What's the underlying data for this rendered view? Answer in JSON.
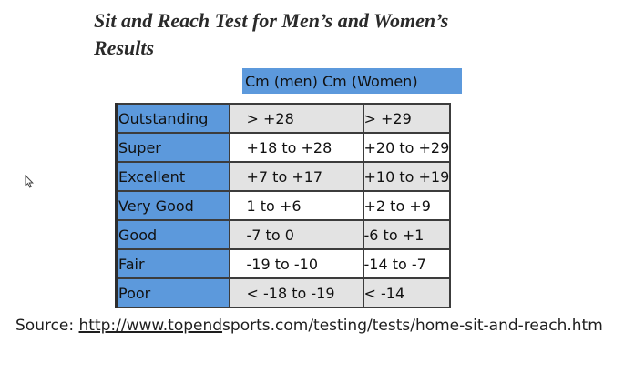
{
  "document": {
    "title": "Sit and Reach Test for Men’s and Women’s Results",
    "column_header": "Cm (men) Cm (Women)",
    "table": {
      "rows": [
        {
          "category": "Outstanding",
          "men": "> +28",
          "women": "> +29"
        },
        {
          "category": "Super",
          "men": "+18 to +28",
          "women": "+20 to +29"
        },
        {
          "category": "Excellent",
          "men": "+7 to +17",
          "women": "+10 to +19"
        },
        {
          "category": "Very Good",
          "men": "1 to +6",
          "women": "+2 to +9"
        },
        {
          "category": "Good",
          "men": "-7 to 0",
          "women": "-6 to +1"
        },
        {
          "category": "Fair",
          "men": "-19 to -10",
          "women": "-14 to -7"
        },
        {
          "category": "Poor",
          "men": "< -18 to -19",
          "women": "< -14"
        }
      ]
    },
    "source": {
      "label": "Source:",
      "link_text": "http://www.topend",
      "rest_text": "sports.com/testing/tests/home-sit-and-reach.htm"
    }
  },
  "colors": {
    "header_band": "#5c99dc",
    "category_cell": "#5c99dc",
    "row_shade": "#e3e3e3"
  },
  "icons": {
    "cursor": "mouse-pointer-icon"
  }
}
